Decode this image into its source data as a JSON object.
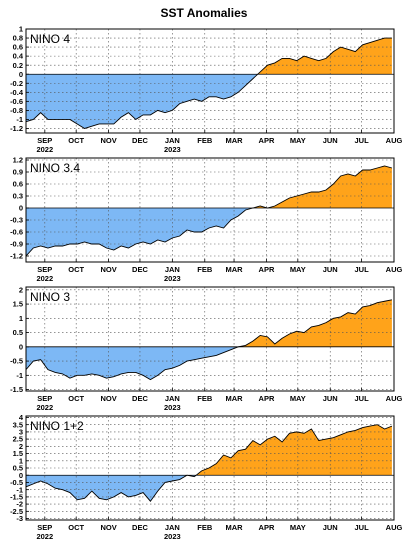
{
  "chart_data": {
    "title": "SST Anomalies",
    "x_ticks": [
      {
        "label": "SEP",
        "sub": "2022",
        "date": "2022-09-01"
      },
      {
        "label": "OCT",
        "sub": "",
        "date": "2022-10-01"
      },
      {
        "label": "NOV",
        "sub": "",
        "date": "2022-11-01"
      },
      {
        "label": "DEC",
        "sub": "",
        "date": "2022-12-01"
      },
      {
        "label": "JAN",
        "sub": "2023",
        "date": "2023-01-01"
      },
      {
        "label": "FEB",
        "sub": "",
        "date": "2023-02-01"
      },
      {
        "label": "MAR",
        "sub": "",
        "date": "2023-03-01"
      },
      {
        "label": "APR",
        "sub": "",
        "date": "2023-04-01"
      },
      {
        "label": "MAY",
        "sub": "",
        "date": "2023-05-01"
      },
      {
        "label": "JUN",
        "sub": "",
        "date": "2023-06-01"
      },
      {
        "label": "JUL",
        "sub": "",
        "date": "2023-07-01"
      },
      {
        "label": "AUG",
        "sub": "",
        "date": "2023-08-01"
      }
    ],
    "x_range": [
      "2022-08-14",
      "2023-08-01"
    ],
    "negative_color": "#7db8f5",
    "positive_color": "#ffa31a",
    "panels": [
      {
        "label": "NINO 4",
        "type": "area",
        "ylim": [
          -1.3,
          1.0
        ],
        "yticks": [
          "1",
          "0.8",
          "0.6",
          "0.4",
          "0.2",
          "0",
          "-0.2",
          "-0.4",
          "-0.6",
          "-0.8",
          "-1",
          "-1.2"
        ],
        "ytick_values": [
          1,
          0.8,
          0.6,
          0.4,
          0.2,
          0,
          -0.2,
          -0.4,
          -0.6,
          -0.8,
          -1,
          -1.2
        ],
        "dates": [
          "2022-08-14",
          "2022-08-21",
          "2022-08-28",
          "2022-09-04",
          "2022-09-11",
          "2022-09-18",
          "2022-09-25",
          "2022-10-02",
          "2022-10-09",
          "2022-10-16",
          "2022-10-23",
          "2022-10-30",
          "2022-11-06",
          "2022-11-13",
          "2022-11-20",
          "2022-11-27",
          "2022-12-04",
          "2022-12-11",
          "2022-12-18",
          "2022-12-25",
          "2023-01-01",
          "2023-01-08",
          "2023-01-15",
          "2023-01-22",
          "2023-01-29",
          "2023-02-05",
          "2023-02-12",
          "2023-02-19",
          "2023-02-26",
          "2023-03-05",
          "2023-03-12",
          "2023-03-19",
          "2023-03-26",
          "2023-04-02",
          "2023-04-09",
          "2023-04-16",
          "2023-04-23",
          "2023-04-30",
          "2023-05-07",
          "2023-05-14",
          "2023-05-21",
          "2023-05-28",
          "2023-06-04",
          "2023-06-11",
          "2023-06-18",
          "2023-06-25",
          "2023-07-02",
          "2023-07-09",
          "2023-07-16",
          "2023-07-23",
          "2023-07-30"
        ],
        "values": [
          -1.05,
          -1.0,
          -0.85,
          -1.0,
          -1.0,
          -1.0,
          -1.0,
          -1.1,
          -1.2,
          -1.15,
          -1.1,
          -1.1,
          -1.1,
          -0.95,
          -0.85,
          -1.0,
          -0.9,
          -0.9,
          -0.8,
          -0.85,
          -0.8,
          -0.65,
          -0.6,
          -0.55,
          -0.6,
          -0.5,
          -0.5,
          -0.55,
          -0.5,
          -0.4,
          -0.25,
          -0.1,
          0.05,
          0.2,
          0.25,
          0.35,
          0.35,
          0.3,
          0.4,
          0.35,
          0.3,
          0.35,
          0.5,
          0.6,
          0.55,
          0.5,
          0.65,
          0.7,
          0.75,
          0.8,
          0.8
        ]
      },
      {
        "label": "NINO 3.4",
        "type": "area",
        "ylim": [
          -1.35,
          1.25
        ],
        "yticks": [
          "1.2",
          "0.9",
          "0.6",
          "0.3",
          "0",
          "-0.3",
          "-0.6",
          "-0.9",
          "-1.2"
        ],
        "ytick_values": [
          1.2,
          0.9,
          0.6,
          0.3,
          0,
          -0.3,
          -0.6,
          -0.9,
          -1.2
        ],
        "dates": [
          "2022-08-14",
          "2022-08-21",
          "2022-08-28",
          "2022-09-04",
          "2022-09-11",
          "2022-09-18",
          "2022-09-25",
          "2022-10-02",
          "2022-10-09",
          "2022-10-16",
          "2022-10-23",
          "2022-10-30",
          "2022-11-06",
          "2022-11-13",
          "2022-11-20",
          "2022-11-27",
          "2022-12-04",
          "2022-12-11",
          "2022-12-18",
          "2022-12-25",
          "2023-01-01",
          "2023-01-08",
          "2023-01-15",
          "2023-01-22",
          "2023-01-29",
          "2023-02-05",
          "2023-02-12",
          "2023-02-19",
          "2023-02-26",
          "2023-03-05",
          "2023-03-12",
          "2023-03-19",
          "2023-03-26",
          "2023-04-02",
          "2023-04-09",
          "2023-04-16",
          "2023-04-23",
          "2023-04-30",
          "2023-05-07",
          "2023-05-14",
          "2023-05-21",
          "2023-05-28",
          "2023-06-04",
          "2023-06-11",
          "2023-06-18",
          "2023-06-25",
          "2023-07-02",
          "2023-07-09",
          "2023-07-16",
          "2023-07-23",
          "2023-07-30"
        ],
        "values": [
          -1.2,
          -1.0,
          -0.95,
          -1.0,
          -0.95,
          -0.95,
          -0.9,
          -0.9,
          -0.85,
          -0.9,
          -0.9,
          -1.0,
          -1.05,
          -0.95,
          -1.0,
          -0.9,
          -0.85,
          -0.9,
          -0.8,
          -0.85,
          -0.75,
          -0.7,
          -0.55,
          -0.6,
          -0.6,
          -0.5,
          -0.45,
          -0.5,
          -0.3,
          -0.2,
          -0.05,
          0.0,
          0.05,
          0.0,
          0.05,
          0.15,
          0.25,
          0.3,
          0.35,
          0.4,
          0.4,
          0.45,
          0.6,
          0.8,
          0.85,
          0.8,
          0.95,
          0.95,
          1.0,
          1.05,
          1.0
        ]
      },
      {
        "label": "NINO 3",
        "type": "area",
        "ylim": [
          -1.55,
          2.1
        ],
        "yticks": [
          "2",
          "1.5",
          "1",
          "0.5",
          "0",
          "-0.5",
          "-1",
          "-1.5"
        ],
        "ytick_values": [
          2,
          1.5,
          1,
          0.5,
          0,
          -0.5,
          -1,
          -1.5
        ],
        "dates": [
          "2022-08-14",
          "2022-08-21",
          "2022-08-28",
          "2022-09-04",
          "2022-09-11",
          "2022-09-18",
          "2022-09-25",
          "2022-10-02",
          "2022-10-09",
          "2022-10-16",
          "2022-10-23",
          "2022-10-30",
          "2022-11-06",
          "2022-11-13",
          "2022-11-20",
          "2022-11-27",
          "2022-12-04",
          "2022-12-11",
          "2022-12-18",
          "2022-12-25",
          "2023-01-01",
          "2023-01-08",
          "2023-01-15",
          "2023-01-22",
          "2023-01-29",
          "2023-02-05",
          "2023-02-12",
          "2023-02-19",
          "2023-02-26",
          "2023-03-05",
          "2023-03-12",
          "2023-03-19",
          "2023-03-26",
          "2023-04-02",
          "2023-04-09",
          "2023-04-16",
          "2023-04-23",
          "2023-04-30",
          "2023-05-07",
          "2023-05-14",
          "2023-05-21",
          "2023-05-28",
          "2023-06-04",
          "2023-06-11",
          "2023-06-18",
          "2023-06-25",
          "2023-07-02",
          "2023-07-09",
          "2023-07-16",
          "2023-07-23",
          "2023-07-30"
        ],
        "values": [
          -0.8,
          -0.5,
          -0.45,
          -0.8,
          -0.9,
          -0.95,
          -1.1,
          -1.0,
          -1.0,
          -0.95,
          -1.0,
          -1.1,
          -1.05,
          -0.95,
          -0.9,
          -0.9,
          -1.0,
          -1.15,
          -1.0,
          -0.8,
          -0.75,
          -0.65,
          -0.5,
          -0.45,
          -0.4,
          -0.35,
          -0.3,
          -0.2,
          -0.1,
          0.0,
          0.05,
          0.2,
          0.4,
          0.35,
          0.1,
          0.3,
          0.45,
          0.55,
          0.5,
          0.7,
          0.75,
          0.85,
          1.0,
          1.05,
          1.2,
          1.15,
          1.4,
          1.45,
          1.55,
          1.6,
          1.65
        ]
      },
      {
        "label": "NINO 1+2",
        "type": "area",
        "ylim": [
          -3.1,
          4.1
        ],
        "yticks": [
          "4",
          "3.5",
          "3",
          "2.5",
          "2",
          "1.5",
          "1",
          "0.5",
          "0",
          "-0.5",
          "-1",
          "-1.5",
          "-2",
          "-2.5",
          "-3"
        ],
        "ytick_values": [
          4,
          3.5,
          3,
          2.5,
          2,
          1.5,
          1,
          0.5,
          0,
          -0.5,
          -1,
          -1.5,
          -2,
          -2.5,
          -3
        ],
        "dates": [
          "2022-08-14",
          "2022-08-21",
          "2022-08-28",
          "2022-09-04",
          "2022-09-11",
          "2022-09-18",
          "2022-09-25",
          "2022-10-02",
          "2022-10-09",
          "2022-10-16",
          "2022-10-23",
          "2022-10-30",
          "2022-11-06",
          "2022-11-13",
          "2022-11-20",
          "2022-11-27",
          "2022-12-04",
          "2022-12-11",
          "2022-12-18",
          "2022-12-25",
          "2023-01-01",
          "2023-01-08",
          "2023-01-15",
          "2023-01-22",
          "2023-01-29",
          "2023-02-05",
          "2023-02-12",
          "2023-02-19",
          "2023-02-26",
          "2023-03-05",
          "2023-03-12",
          "2023-03-19",
          "2023-03-26",
          "2023-04-02",
          "2023-04-09",
          "2023-04-16",
          "2023-04-23",
          "2023-04-30",
          "2023-05-07",
          "2023-05-14",
          "2023-05-21",
          "2023-05-28",
          "2023-06-04",
          "2023-06-11",
          "2023-06-18",
          "2023-06-25",
          "2023-07-02",
          "2023-07-09",
          "2023-07-16",
          "2023-07-23",
          "2023-07-30"
        ],
        "values": [
          -0.8,
          -0.6,
          -0.4,
          -0.6,
          -0.9,
          -1.0,
          -1.2,
          -1.7,
          -1.6,
          -1.1,
          -1.6,
          -1.7,
          -1.5,
          -1.2,
          -1.5,
          -1.4,
          -1.2,
          -1.8,
          -1.1,
          -0.5,
          -0.4,
          -0.3,
          0.0,
          -0.1,
          0.3,
          0.5,
          0.8,
          1.4,
          1.2,
          1.7,
          1.8,
          2.4,
          2.1,
          2.5,
          2.7,
          2.3,
          2.9,
          3.0,
          2.9,
          3.2,
          2.4,
          2.5,
          2.6,
          2.8,
          3.0,
          3.1,
          3.3,
          3.4,
          3.5,
          3.2,
          3.4
        ]
      }
    ]
  }
}
